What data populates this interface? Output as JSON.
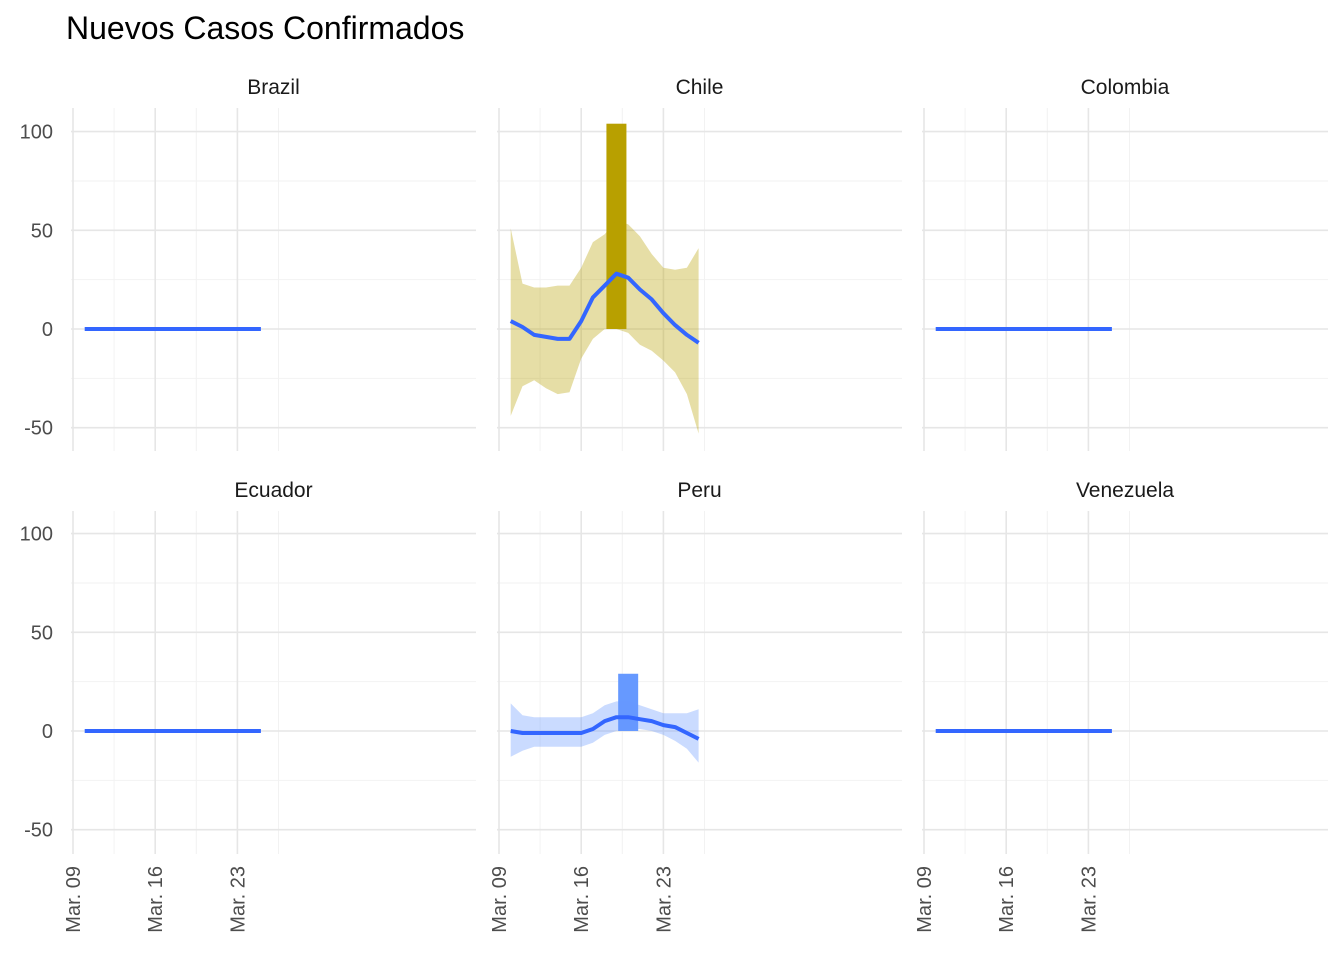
{
  "chart_data": {
    "type": "faceted",
    "title": "Nuevos Casos Confirmados",
    "xlabel": "",
    "ylabel": "",
    "ylim": [
      -60,
      110
    ],
    "xlim": [
      "2020-03-09",
      "2020-03-26"
    ],
    "x_ticks": [
      {
        "date": "2020-03-09",
        "label": "Mar. 09"
      },
      {
        "date": "2020-03-16",
        "label": "Mar. 16"
      },
      {
        "date": "2020-03-23",
        "label": "Mar. 23"
      }
    ],
    "y_ticks": [
      -50,
      0,
      50,
      100
    ],
    "grid": true,
    "legend": "none",
    "series_style": {
      "smooth_line_color": "#3366ff",
      "band_opacity": 0.35
    },
    "facets": [
      {
        "name": "Brazil",
        "bars": [],
        "smooth": {
          "x": [
            "2020-03-10",
            "2020-03-25"
          ],
          "y": [
            0,
            0
          ],
          "lower": null,
          "upper": null
        }
      },
      {
        "name": "Chile",
        "color": "#b8a000",
        "bars": [
          {
            "x": "2020-03-19",
            "y": 104
          }
        ],
        "smooth": {
          "x": [
            "2020-03-10",
            "2020-03-11",
            "2020-03-12",
            "2020-03-13",
            "2020-03-14",
            "2020-03-15",
            "2020-03-16",
            "2020-03-17",
            "2020-03-18",
            "2020-03-19",
            "2020-03-20",
            "2020-03-21",
            "2020-03-22",
            "2020-03-23",
            "2020-03-24",
            "2020-03-25",
            "2020-03-26"
          ],
          "y": [
            4,
            1,
            -3,
            -4,
            -5,
            -5,
            4,
            16,
            22,
            28,
            26,
            20,
            15,
            8,
            2,
            -3,
            -7
          ],
          "lower": [
            -44,
            -29,
            -26,
            -30,
            -33,
            -32,
            -15,
            -5,
            0,
            0,
            -2,
            -8,
            -11,
            -16,
            -22,
            -33,
            -53
          ],
          "upper": [
            51,
            23,
            21,
            21,
            22,
            22,
            31,
            44,
            48,
            55,
            53,
            47,
            38,
            31,
            30,
            31,
            41
          ]
        }
      },
      {
        "name": "Colombia",
        "bars": [],
        "smooth": {
          "x": [
            "2020-03-10",
            "2020-03-25"
          ],
          "y": [
            0,
            0
          ],
          "lower": null,
          "upper": null
        }
      },
      {
        "name": "Ecuador",
        "bars": [],
        "smooth": {
          "x": [
            "2020-03-10",
            "2020-03-25"
          ],
          "y": [
            0,
            0
          ],
          "lower": null,
          "upper": null
        }
      },
      {
        "name": "Peru",
        "color": "#6699ff",
        "bars": [
          {
            "x": "2020-03-20",
            "y": 29
          }
        ],
        "smooth": {
          "x": [
            "2020-03-10",
            "2020-03-11",
            "2020-03-12",
            "2020-03-13",
            "2020-03-14",
            "2020-03-15",
            "2020-03-16",
            "2020-03-17",
            "2020-03-18",
            "2020-03-19",
            "2020-03-20",
            "2020-03-21",
            "2020-03-22",
            "2020-03-23",
            "2020-03-24",
            "2020-03-25",
            "2020-03-26"
          ],
          "y": [
            0,
            -1,
            -1,
            -1,
            -1,
            -1,
            -1,
            1,
            5,
            7,
            7,
            6,
            5,
            3,
            2,
            -1,
            -4
          ],
          "lower": [
            -13,
            -10,
            -8,
            -8,
            -8,
            -8,
            -8,
            -6,
            -2,
            0,
            1,
            1,
            0,
            -2,
            -5,
            -9,
            -16
          ],
          "upper": [
            14,
            8,
            7,
            7,
            7,
            7,
            7,
            9,
            13,
            15,
            15,
            13,
            11,
            9,
            9,
            9,
            11
          ]
        }
      },
      {
        "name": "Venezuela",
        "bars": [],
        "smooth": {
          "x": [
            "2020-03-10",
            "2020-03-25"
          ],
          "y": [
            0,
            0
          ],
          "lower": null,
          "upper": null
        }
      }
    ]
  }
}
